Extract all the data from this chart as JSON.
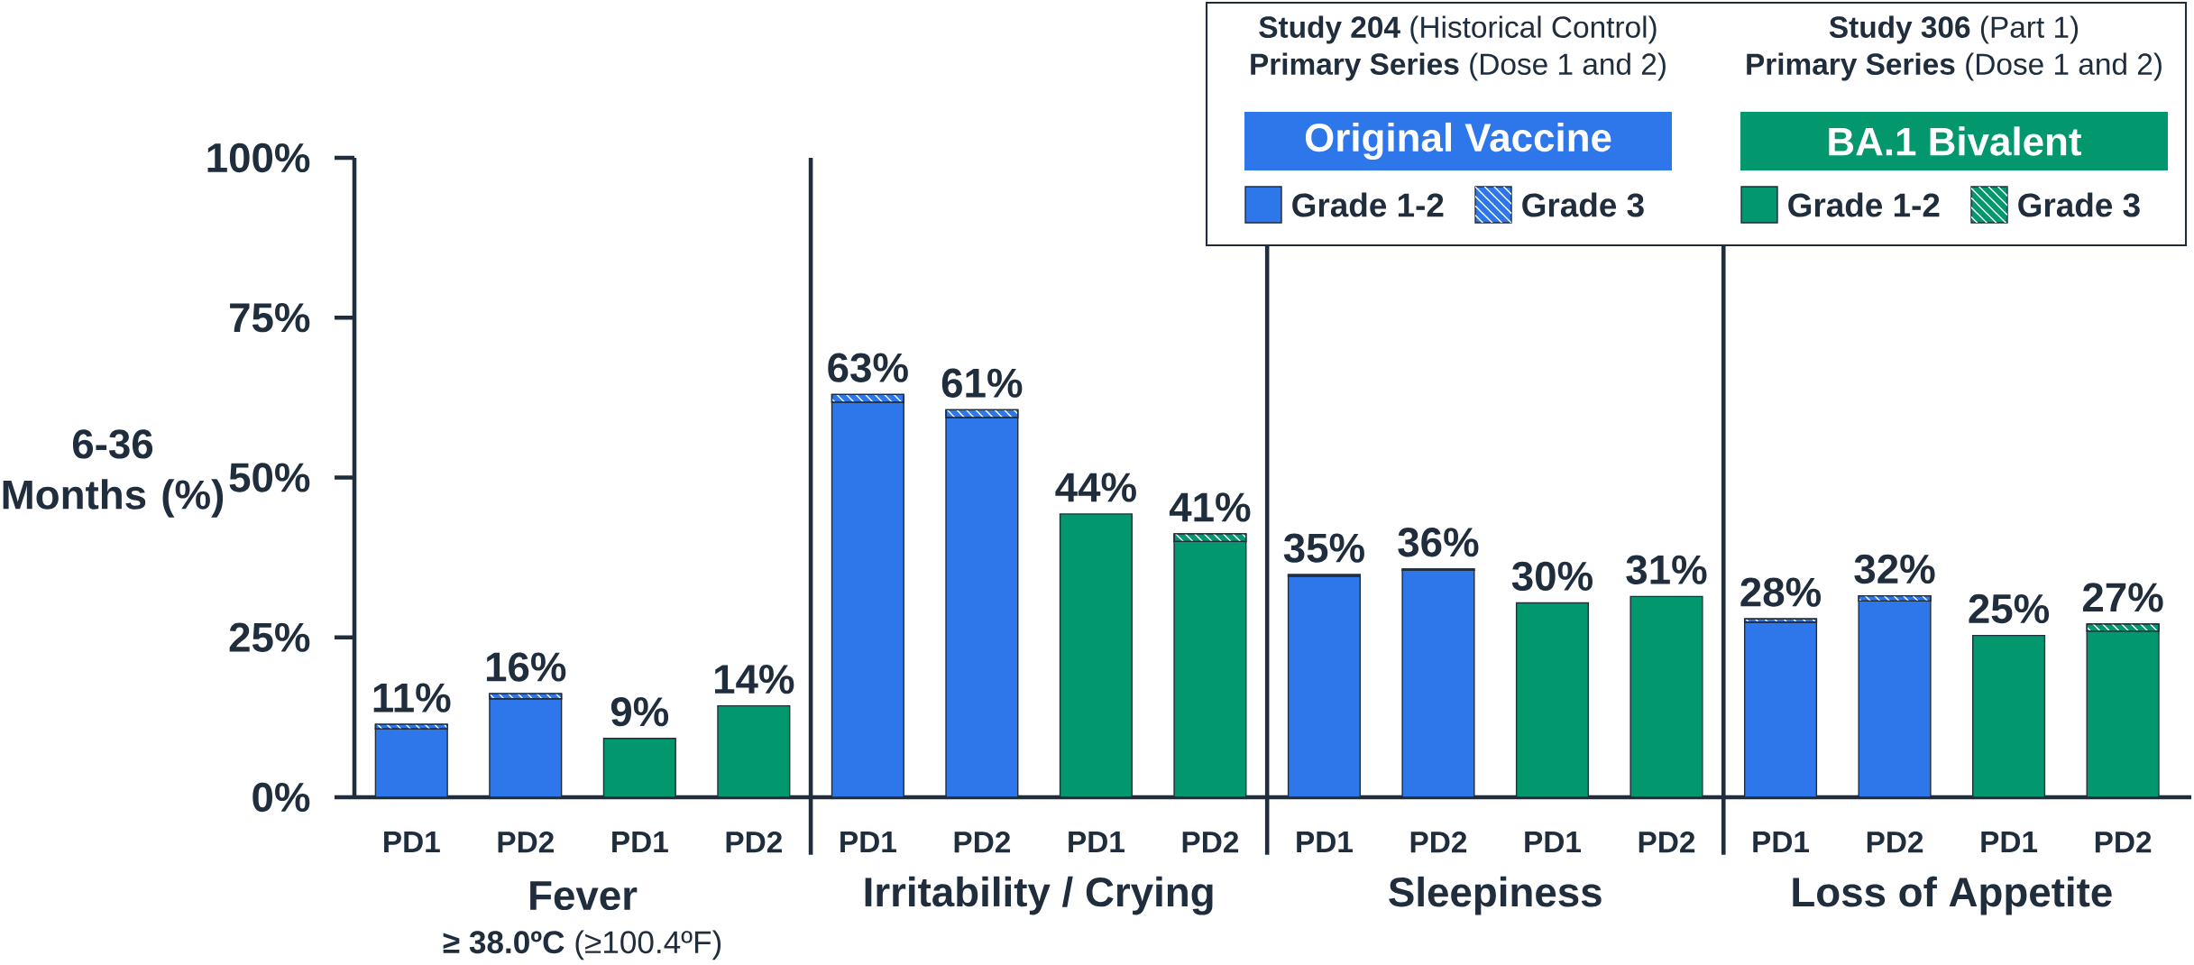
{
  "chart_data": {
    "type": "bar",
    "stacked": true,
    "ylabel": "6-36 Months (%)",
    "categories": [
      "PD1",
      "PD2",
      "PD1",
      "PD2",
      "PD1",
      "PD2",
      "PD1",
      "PD2",
      "PD1",
      "PD2",
      "PD1",
      "PD2",
      "PD1",
      "PD2",
      "PD1",
      "PD2"
    ],
    "series": [
      {
        "name": "Grade 1-2",
        "color": "#2e77ea",
        "values": [
          10.7,
          15.4,
          null,
          null,
          61.8,
          59.4,
          null,
          null,
          34.6,
          35.5,
          null,
          null,
          27.4,
          30.7,
          null,
          null
        ]
      },
      {
        "name": "Grade 3",
        "color": "#2e77ea",
        "values": [
          0.7,
          0.8,
          null,
          null,
          1.2,
          1.2,
          null,
          null,
          0.2,
          0.2,
          null,
          null,
          0.5,
          0.8,
          null,
          null
        ]
      },
      {
        "name": "Grade 1-2",
        "color": "#03976e",
        "values": [
          null,
          null,
          9.2,
          14.3,
          null,
          null,
          44.3,
          40.0,
          null,
          null,
          30.4,
          31.4,
          null,
          null,
          25.3,
          26.0
        ]
      },
      {
        "name": "Grade 3",
        "color": "#03976e",
        "values": [
          null,
          null,
          null,
          null,
          null,
          null,
          null,
          1.2,
          null,
          null,
          null,
          null,
          null,
          null,
          null,
          1.1
        ]
      }
    ],
    "totals": [
      "11%",
      "16%",
      "9%",
      "14%",
      "63%",
      "61%",
      "44%",
      "41%",
      "35%",
      "36%",
      "30%",
      "31%",
      "28%",
      "32%",
      "25%",
      "27%"
    ],
    "ylim": [
      0,
      100
    ],
    "yticks": [
      {
        "value": 0,
        "label": "0%"
      },
      {
        "value": 25,
        "label": "25%"
      },
      {
        "value": 50,
        "label": "50%"
      },
      {
        "value": 75,
        "label": "75%"
      },
      {
        "value": 100,
        "label": "100%"
      }
    ],
    "legend": "top right",
    "annotations": [
      "Fever",
      "**≥ 38.0ºC** (≥100.4ºF)",
      "Irritability / Crying",
      "Sleepiness",
      "Loss of Appetite",
      "**Study 204** (Historical Control)",
      "**Primary Series** (Dose 1 and 2)",
      "Original Vaccine",
      "**Study 306** (Part 1)",
      "**Primary Series** (Dose 1 and 2)",
      "BA.1 Bivalent"
    ]
  }
}
